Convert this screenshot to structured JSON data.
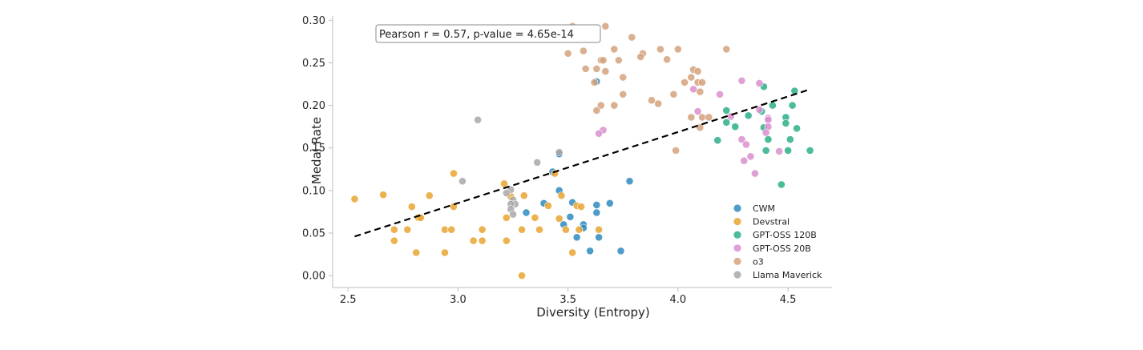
{
  "chart_data": {
    "type": "scatter",
    "xlabel": "Diversity (Entropy)",
    "ylabel": "Medal Rate",
    "xlim": [
      2.43,
      4.7
    ],
    "ylim": [
      -0.014,
      0.305
    ],
    "x_ticks": [
      2.5,
      3.0,
      3.5,
      4.0,
      4.5
    ],
    "x_tick_labels": [
      "2.5",
      "3.0",
      "3.5",
      "4.0",
      "4.5"
    ],
    "y_ticks": [
      0.0,
      0.05,
      0.1,
      0.15,
      0.2,
      0.25,
      0.3
    ],
    "y_tick_labels": [
      "0.00",
      "0.05",
      "0.10",
      "0.15",
      "0.20",
      "0.25",
      "0.30"
    ],
    "grid": false,
    "legend_position": "lower-right",
    "annotation": "Pearson r = 0.57, p-value = 4.65e-14",
    "trendline": {
      "x": [
        2.53,
        4.59
      ],
      "y": [
        0.046,
        0.218
      ],
      "style": "dashed",
      "color": "#000000"
    },
    "series": [
      {
        "name": "CWM",
        "color": "#2E8BC0",
        "points": [
          [
            3.63,
            0.228
          ],
          [
            3.46,
            0.143
          ],
          [
            3.78,
            0.111
          ],
          [
            3.43,
            0.122
          ],
          [
            3.46,
            0.1
          ],
          [
            3.39,
            0.085
          ],
          [
            3.52,
            0.086
          ],
          [
            3.63,
            0.083
          ],
          [
            3.69,
            0.085
          ],
          [
            3.31,
            0.074
          ],
          [
            3.51,
            0.069
          ],
          [
            3.63,
            0.074
          ],
          [
            3.57,
            0.06
          ],
          [
            3.48,
            0.06
          ],
          [
            3.57,
            0.056
          ],
          [
            3.64,
            0.045
          ],
          [
            3.54,
            0.045
          ],
          [
            3.6,
            0.029
          ],
          [
            3.74,
            0.029
          ]
        ]
      },
      {
        "name": "Devstral",
        "color": "#E8A430",
        "points": [
          [
            2.53,
            0.09
          ],
          [
            2.66,
            0.095
          ],
          [
            2.87,
            0.094
          ],
          [
            2.98,
            0.12
          ],
          [
            2.98,
            0.081
          ],
          [
            2.79,
            0.081
          ],
          [
            2.82,
            0.068
          ],
          [
            2.83,
            0.068
          ],
          [
            2.71,
            0.054
          ],
          [
            2.77,
            0.054
          ],
          [
            2.94,
            0.054
          ],
          [
            2.97,
            0.054
          ],
          [
            2.71,
            0.041
          ],
          [
            3.07,
            0.041
          ],
          [
            3.11,
            0.054
          ],
          [
            3.11,
            0.041
          ],
          [
            3.22,
            0.041
          ],
          [
            3.21,
            0.108
          ],
          [
            3.24,
            0.093
          ],
          [
            3.3,
            0.094
          ],
          [
            3.22,
            0.068
          ],
          [
            3.35,
            0.068
          ],
          [
            3.29,
            0.054
          ],
          [
            3.37,
            0.054
          ],
          [
            3.41,
            0.082
          ],
          [
            3.47,
            0.094
          ],
          [
            3.44,
            0.12
          ],
          [
            3.46,
            0.067
          ],
          [
            3.49,
            0.054
          ],
          [
            3.54,
            0.082
          ],
          [
            3.56,
            0.081
          ],
          [
            3.55,
            0.054
          ],
          [
            3.64,
            0.054
          ],
          [
            3.52,
            0.027
          ],
          [
            2.81,
            0.027
          ],
          [
            2.94,
            0.027
          ],
          [
            3.29,
            0.0
          ]
        ]
      },
      {
        "name": "GPT-OSS 120B",
        "color": "#2BAF8A",
        "points": [
          [
            4.39,
            0.222
          ],
          [
            4.53,
            0.217
          ],
          [
            4.43,
            0.2
          ],
          [
            4.52,
            0.2
          ],
          [
            4.22,
            0.194
          ],
          [
            4.38,
            0.193
          ],
          [
            4.32,
            0.188
          ],
          [
            4.49,
            0.186
          ],
          [
            4.22,
            0.18
          ],
          [
            4.26,
            0.175
          ],
          [
            4.39,
            0.174
          ],
          [
            4.49,
            0.179
          ],
          [
            4.54,
            0.173
          ],
          [
            4.18,
            0.159
          ],
          [
            4.41,
            0.16
          ],
          [
            4.51,
            0.16
          ],
          [
            4.4,
            0.147
          ],
          [
            4.5,
            0.147
          ],
          [
            4.6,
            0.147
          ],
          [
            4.47,
            0.107
          ]
        ]
      },
      {
        "name": "GPT-OSS 20B",
        "color": "#D98FCF",
        "points": [
          [
            4.29,
            0.229
          ],
          [
            4.37,
            0.226
          ],
          [
            4.07,
            0.219
          ],
          [
            4.19,
            0.213
          ],
          [
            4.37,
            0.195
          ],
          [
            4.09,
            0.193
          ],
          [
            4.41,
            0.185
          ],
          [
            4.41,
            0.183
          ],
          [
            4.24,
            0.187
          ],
          [
            4.41,
            0.175
          ],
          [
            4.4,
            0.168
          ],
          [
            4.29,
            0.16
          ],
          [
            4.31,
            0.154
          ],
          [
            4.33,
            0.14
          ],
          [
            4.3,
            0.135
          ],
          [
            4.35,
            0.12
          ],
          [
            4.46,
            0.146
          ],
          [
            3.66,
            0.171
          ],
          [
            3.64,
            0.167
          ]
        ]
      },
      {
        "name": "o3",
        "color": "#D4A27C",
        "points": [
          [
            3.52,
            0.293
          ],
          [
            3.67,
            0.293
          ],
          [
            3.79,
            0.28
          ],
          [
            3.92,
            0.266
          ],
          [
            4.0,
            0.266
          ],
          [
            4.22,
            0.266
          ],
          [
            3.71,
            0.266
          ],
          [
            3.57,
            0.264
          ],
          [
            3.5,
            0.261
          ],
          [
            3.84,
            0.261
          ],
          [
            3.83,
            0.257
          ],
          [
            3.95,
            0.254
          ],
          [
            3.65,
            0.253
          ],
          [
            3.66,
            0.253
          ],
          [
            3.73,
            0.253
          ],
          [
            3.58,
            0.243
          ],
          [
            3.63,
            0.243
          ],
          [
            3.67,
            0.24
          ],
          [
            4.07,
            0.242
          ],
          [
            4.09,
            0.24
          ],
          [
            3.75,
            0.233
          ],
          [
            4.06,
            0.233
          ],
          [
            3.62,
            0.227
          ],
          [
            4.03,
            0.227
          ],
          [
            4.09,
            0.227
          ],
          [
            4.11,
            0.227
          ],
          [
            3.75,
            0.213
          ],
          [
            3.98,
            0.213
          ],
          [
            4.1,
            0.216
          ],
          [
            3.88,
            0.206
          ],
          [
            3.91,
            0.202
          ],
          [
            3.65,
            0.2
          ],
          [
            3.71,
            0.2
          ],
          [
            3.63,
            0.194
          ],
          [
            4.06,
            0.186
          ],
          [
            4.11,
            0.186
          ],
          [
            4.14,
            0.186
          ],
          [
            4.1,
            0.174
          ],
          [
            3.99,
            0.147
          ]
        ]
      },
      {
        "name": "Llama Maverick",
        "color": "#A8A8A8",
        "points": [
          [
            3.09,
            0.183
          ],
          [
            3.46,
            0.145
          ],
          [
            3.36,
            0.133
          ],
          [
            3.02,
            0.111
          ],
          [
            3.24,
            0.101
          ],
          [
            3.22,
            0.097
          ],
          [
            3.25,
            0.089
          ],
          [
            3.26,
            0.084
          ],
          [
            3.24,
            0.084
          ],
          [
            3.24,
            0.078
          ],
          [
            3.25,
            0.072
          ]
        ]
      }
    ]
  }
}
